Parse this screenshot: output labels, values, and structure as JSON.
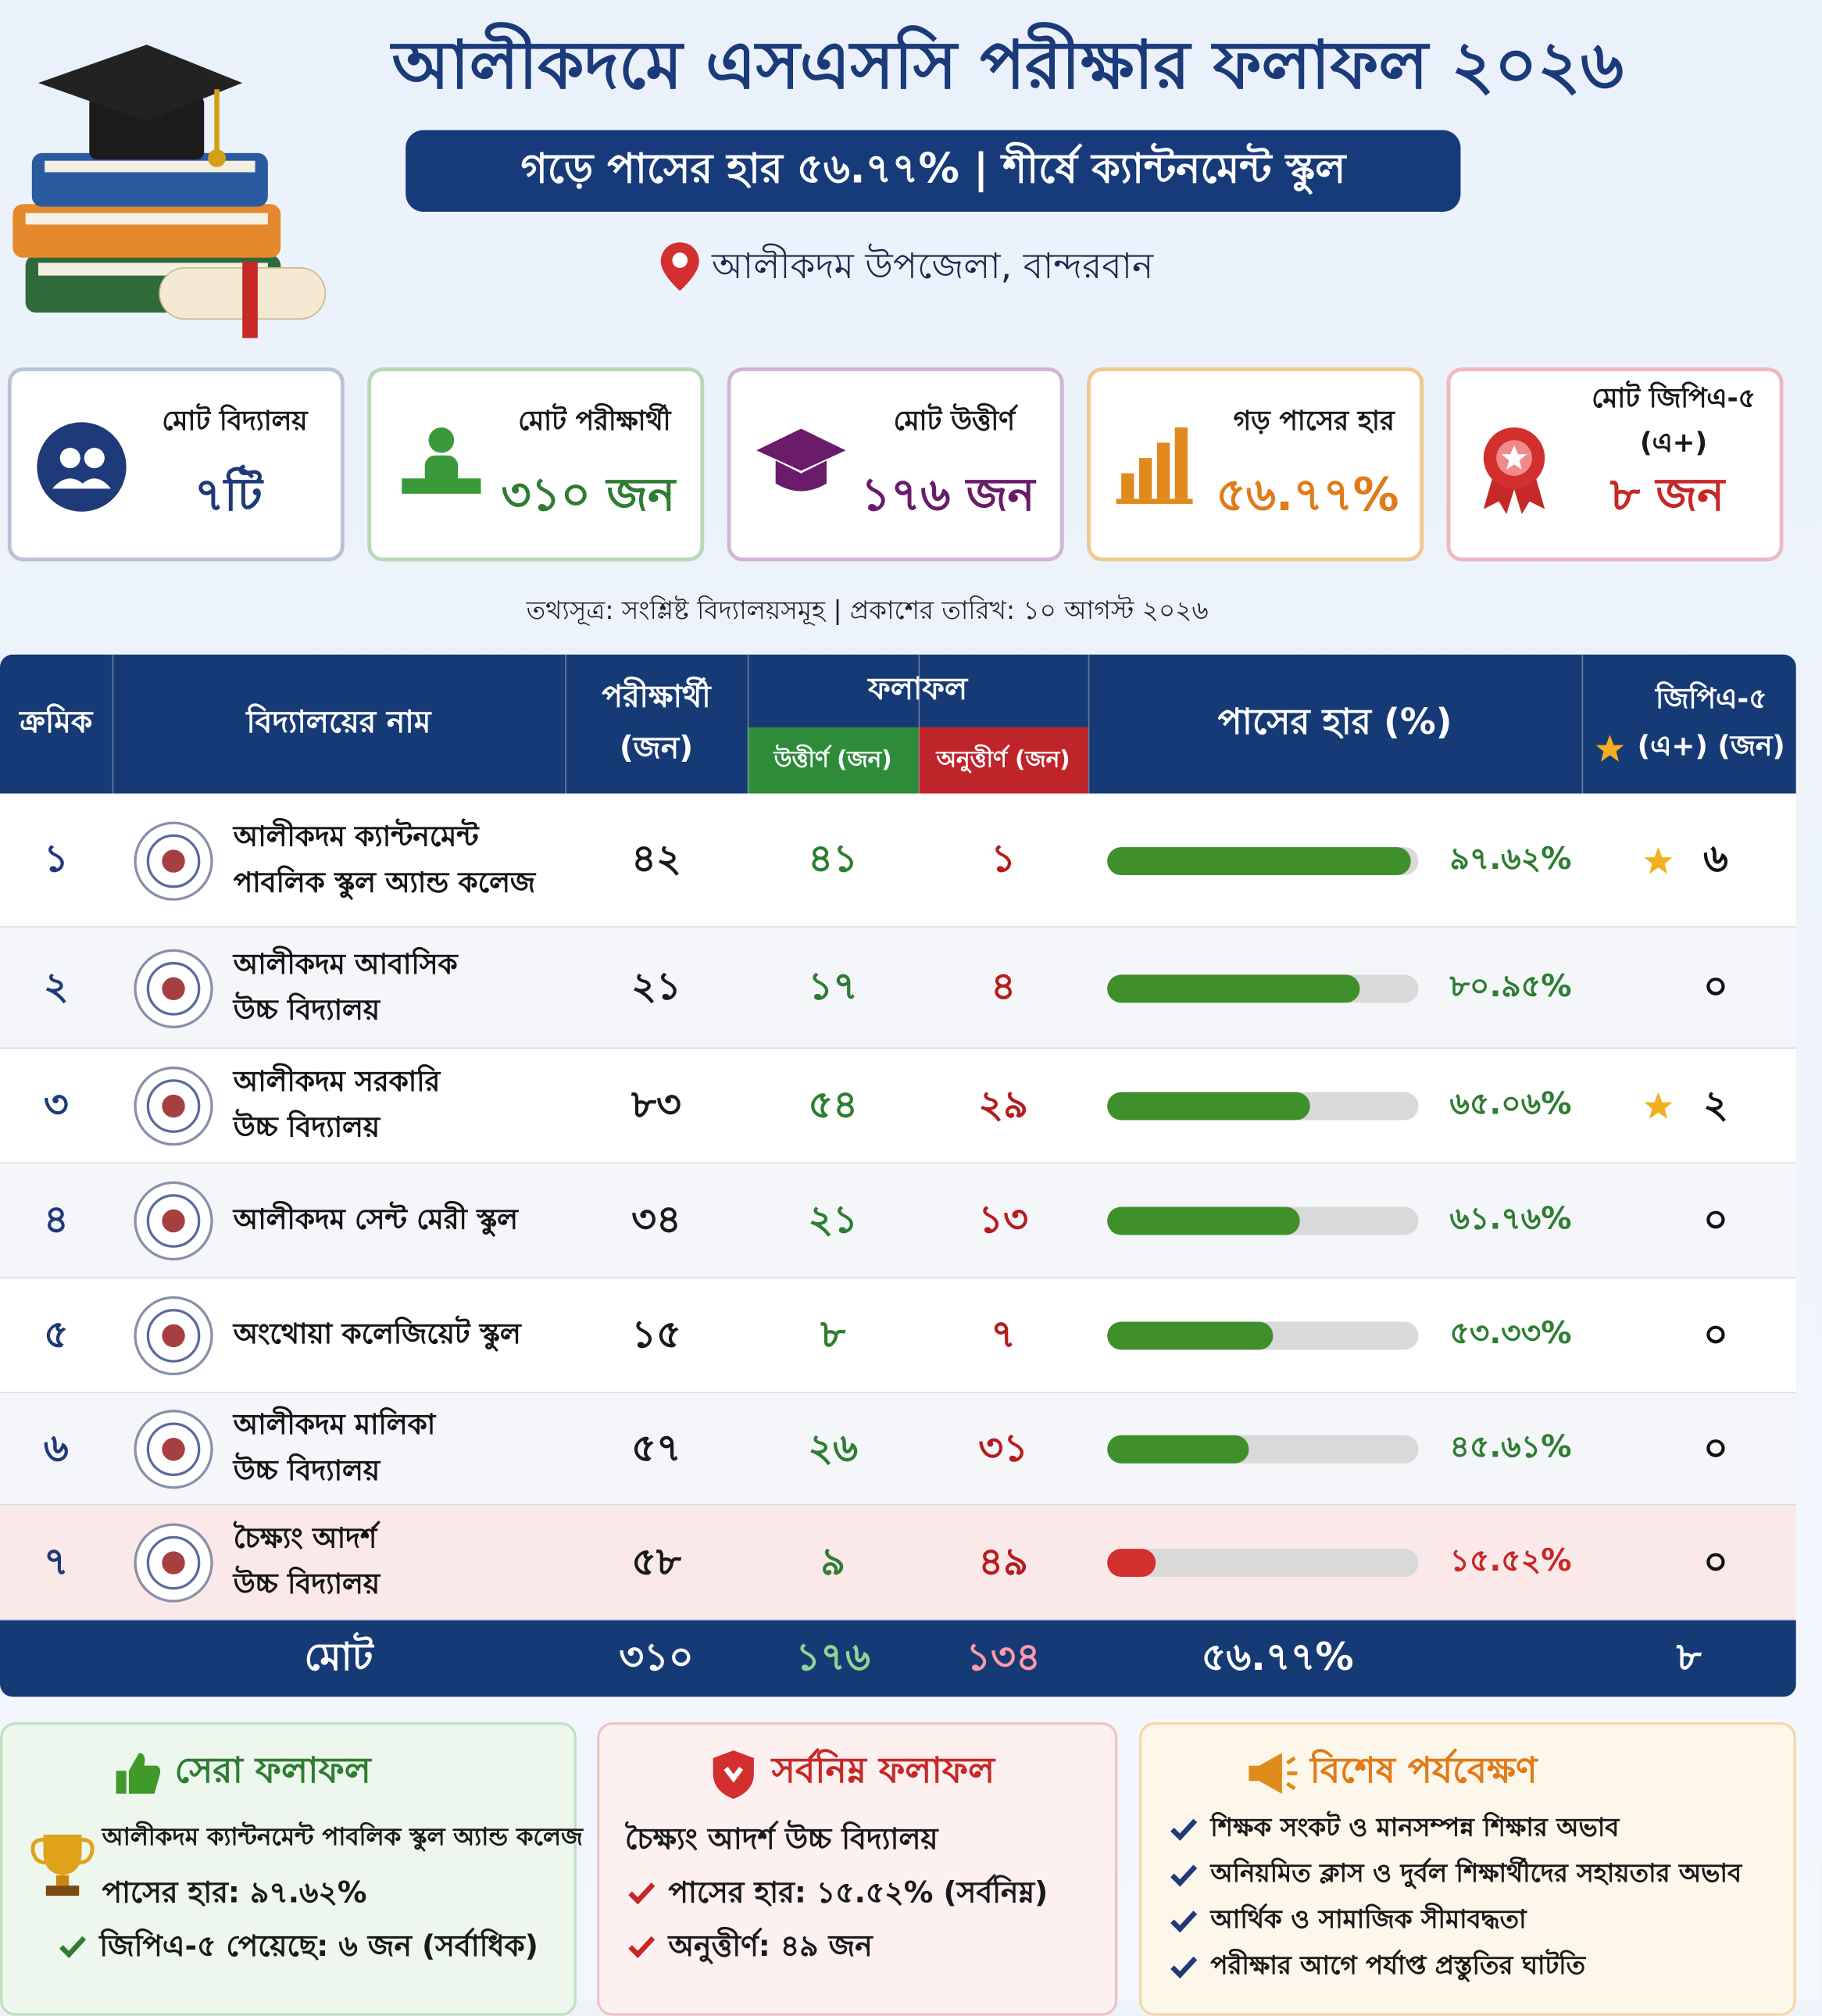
{
  "header": {
    "title": "আলীকদমে এসএসসি পরীক্ষার ফলাফল ২০২৬",
    "subtitle": "গড়ে পাসের হার ৫৬.৭৭% | শীর্ষে ক্যান্টনমেন্ট স্কুল",
    "location": "আলীকদম উপজেলা, বান্দরবান"
  },
  "stats": [
    {
      "label": "মোট বিদ্যালয়",
      "value": "৭টি",
      "color": "#1f3a78",
      "border": "#b9c3d3"
    },
    {
      "label": "মোট পরীক্ষার্থী",
      "value": "৩১০ জন",
      "color": "#2e7d32",
      "border": "#b9d8b9"
    },
    {
      "label": "মোট উত্তীর্ণ",
      "value": "১৭৬ জন",
      "color": "#6a1b6a",
      "border": "#d2b6d6"
    },
    {
      "label": "গড় পাসের হার",
      "value": "৫৬.৭৭%",
      "color": "#e07b1a",
      "border": "#f0c890"
    },
    {
      "label": "মোট জিপিএ-৫ (এ+)",
      "value": "৮ জন",
      "color": "#c62828",
      "border": "#f0b8bf"
    }
  ],
  "source": "তথ্যসূত্র: সংশ্লিষ্ট বিদ্যালয়সমূহ | প্রকাশের তারিখ: ১০ আগস্ট ২০২৬",
  "table": {
    "headers": {
      "serial": "ক্রমিক",
      "name": "বিদ্যালয়ের নাম",
      "examinees": "পরীক্ষার্থী (জন)",
      "results": "ফলাফল",
      "passed": "উত্তীর্ণ (জন)",
      "failed": "অনুত্তীর্ণ (জন)",
      "pass_rate": "পাসের হার (%)",
      "gpa5": "জিপিএ-৫ (এ+) (জন)"
    },
    "pass_rate_scale": [
      0,
      100
    ],
    "rows": [
      {
        "serial": "১",
        "name": [
          "আলীকদম ক্যান্টনমেন্ট",
          "পাবলিক স্কুল অ্যান্ড কলেজ"
        ],
        "examinees": "৪২",
        "passed": "৪১",
        "failed": "১",
        "pass_rate": 97.62,
        "pass_rate_label": "৯৭.৬২%",
        "gpa5": "৬",
        "star": true,
        "bar_color": "#3f8f2a",
        "highlight": false
      },
      {
        "serial": "২",
        "name": [
          "আলীকদম আবাসিক",
          "উচ্চ বিদ্যালয়"
        ],
        "examinees": "২১",
        "passed": "১৭",
        "failed": "৪",
        "pass_rate": 80.95,
        "pass_rate_label": "৮০.৯৫%",
        "gpa5": "০",
        "star": false,
        "bar_color": "#3f8f2a",
        "highlight": false
      },
      {
        "serial": "৩",
        "name": [
          "আলীকদম সরকারি",
          "উচ্চ বিদ্যালয়"
        ],
        "examinees": "৮৩",
        "passed": "৫৪",
        "failed": "২৯",
        "pass_rate": 65.06,
        "pass_rate_label": "৬৫.০৬%",
        "gpa5": "২",
        "star": true,
        "bar_color": "#3f8f2a",
        "highlight": false
      },
      {
        "serial": "৪",
        "name": [
          "আলীকদম সেন্ট মেরী স্কুল"
        ],
        "examinees": "৩৪",
        "passed": "২১",
        "failed": "১৩",
        "pass_rate": 61.76,
        "pass_rate_label": "৬১.৭৬%",
        "gpa5": "০",
        "star": false,
        "bar_color": "#3f8f2a",
        "highlight": false
      },
      {
        "serial": "৫",
        "name": [
          "অংথোয়া কলেজিয়েট স্কুল"
        ],
        "examinees": "১৫",
        "passed": "৮",
        "failed": "৭",
        "pass_rate": 53.33,
        "pass_rate_label": "৫৩.৩৩%",
        "gpa5": "০",
        "star": false,
        "bar_color": "#3f8f2a",
        "highlight": false
      },
      {
        "serial": "৬",
        "name": [
          "আলীকদম মালিকা",
          "উচ্চ বিদ্যালয়"
        ],
        "examinees": "৫৭",
        "passed": "২৬",
        "failed": "৩১",
        "pass_rate": 45.61,
        "pass_rate_label": "৪৫.৬১%",
        "gpa5": "০",
        "star": false,
        "bar_color": "#3f8f2a",
        "highlight": false
      },
      {
        "serial": "৭",
        "name": [
          "চৈক্ষ্যং আদর্শ",
          "উচ্চ বিদ্যালয়"
        ],
        "examinees": "৫৮",
        "passed": "৯",
        "failed": "৪৯",
        "pass_rate": 15.52,
        "pass_rate_label": "১৫.৫২%",
        "gpa5": "০",
        "star": false,
        "bar_color": "#d32f2f",
        "highlight": true
      }
    ],
    "total": {
      "label": "মোট",
      "examinees": "৩১০",
      "passed": "১৭৬",
      "failed": "১৩৪",
      "pass_rate": "৫৬.৭৭%",
      "gpa5": "৮"
    }
  },
  "highlights": [
    {
      "title": "সেরা ফলাফল",
      "lead": [
        "আলীকদম ক্যান্টনমেন্ট পাবলিক স্কুল অ্যান্ড কলেজ",
        "পাসের হার: ৯৭.৬২%"
      ],
      "points": [
        "জিপিএ-৫ পেয়েছে: ৬ জন (সর্বাধিক)"
      ]
    },
    {
      "title": "সর্বনিম্ন ফলাফল",
      "lead": [
        "চৈক্ষ্যং আদর্শ উচ্চ বিদ্যালয়"
      ],
      "points": [
        "পাসের হার: ১৫.৫২% (সর্বনিম্ন)",
        "অনুত্তীর্ণ: ৪৯ জন"
      ]
    },
    {
      "title": "বিশেষ পর্যবেক্ষণ",
      "lead": [],
      "points": [
        "শিক্ষক সংকট ও মানসম্পন্ন শিক্ষার অভাব",
        "অনিয়মিত ক্লাস ও দুর্বল শিক্ষার্থীদের সহায়তার অভাব",
        "আর্থিক ও সামাজিক সীমাবদ্ধতা",
        "পরীক্ষার আগে পর্যাপ্ত প্রস্তুতির ঘাটতি"
      ]
    }
  ]
}
